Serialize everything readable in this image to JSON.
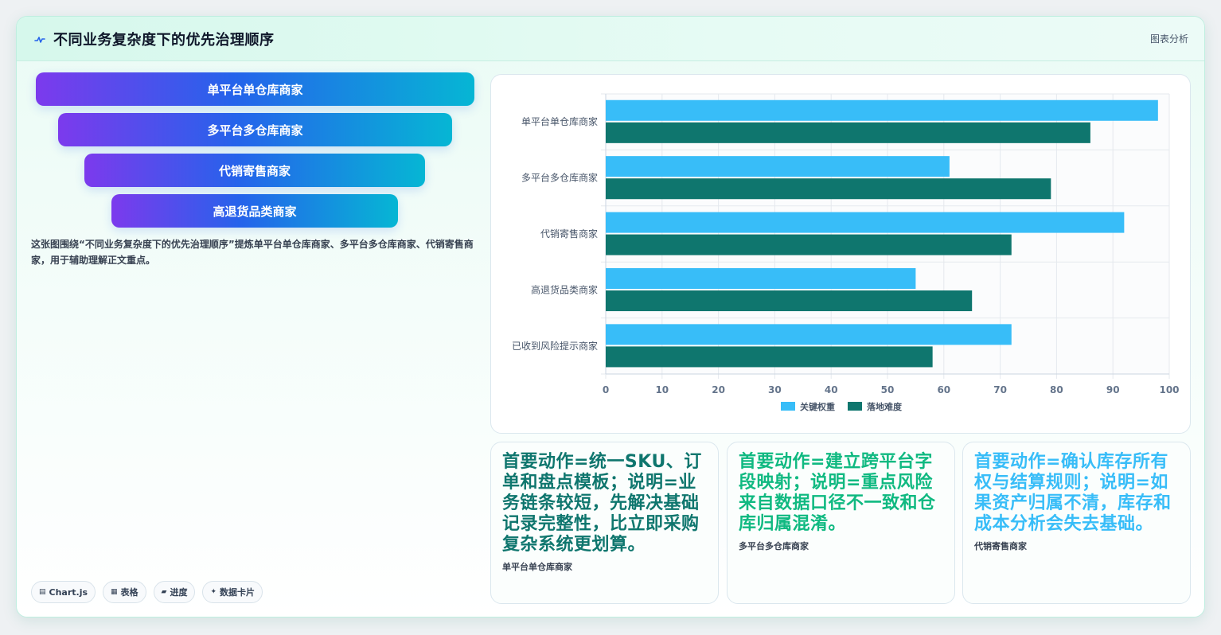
{
  "header": {
    "title": "不同业务复杂度下的优先治理顺序",
    "action": "图表分析"
  },
  "funnel": {
    "steps": [
      "单平台单仓库商家",
      "多平台多仓库商家",
      "代销寄售商家",
      "高退货品类商家"
    ],
    "caption": "这张图围绕“不同业务复杂度下的优先治理顺序”提炼单平台单仓库商家、多平台多仓库商家、代销寄售商家，用于辅助理解正文重点。"
  },
  "tags": [
    {
      "icon": "chart-icon",
      "glyph": "▤",
      "label": "Chart.js"
    },
    {
      "icon": "table-icon",
      "glyph": "▦",
      "label": "表格"
    },
    {
      "icon": "progress-icon",
      "glyph": "▰",
      "label": "进度"
    },
    {
      "icon": "card-icon",
      "glyph": "✦",
      "label": "数据卡片"
    }
  ],
  "chart_data": {
    "type": "bar",
    "orientation": "horizontal",
    "categories": [
      "单平台单仓库商家",
      "多平台多仓库商家",
      "代销寄售商家",
      "高退货品类商家",
      "已收到风险提示商家"
    ],
    "series": [
      {
        "name": "关键权重",
        "color": "#38bdf8",
        "values": [
          98,
          61,
          92,
          55,
          72
        ]
      },
      {
        "name": "落地难度",
        "color": "#0f766e",
        "values": [
          86,
          79,
          72,
          65,
          58
        ]
      }
    ],
    "xlim": [
      0,
      100
    ],
    "xticks": [
      0,
      10,
      20,
      30,
      40,
      50,
      60,
      70,
      80,
      90,
      100
    ],
    "grid": true,
    "legend": "bottom"
  },
  "cards": [
    {
      "text": "首要动作=统一SKU、订单和盘点模板；说明=业务链条较短，先解决基础记录完整性，比立即采购复杂系统更划算。",
      "label": "单平台单仓库商家",
      "color": "#0f766e"
    },
    {
      "text": "首要动作=建立跨平台字段映射；说明=重点风险来自数据口径不一致和仓库归属混淆。",
      "label": "多平台多仓库商家",
      "color": "#10b981"
    },
    {
      "text": "首要动作=确认库存所有权与结算规则；说明=如果资产归属不清，库存和成本分析会失去基础。",
      "label": "代销寄售商家",
      "color": "#38bdf8"
    }
  ]
}
